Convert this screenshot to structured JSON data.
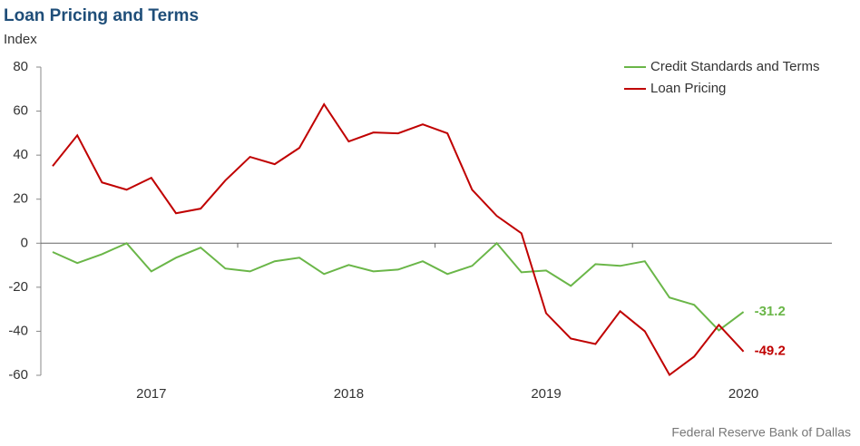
{
  "chart_data": {
    "type": "line",
    "title": "Loan Pricing and Terms",
    "y_label": "Index",
    "source": "Federal Reserve Bank of Dallas",
    "categories": [
      null,
      null,
      null,
      null,
      "2017",
      null,
      null,
      null,
      null,
      null,
      null,
      null,
      "2018",
      null,
      null,
      null,
      null,
      null,
      null,
      null,
      "2019",
      null,
      null,
      null,
      null,
      null,
      null,
      null,
      "2020"
    ],
    "series": [
      {
        "name": "Credit Standards and Terms",
        "color": "#6ab648",
        "values": [
          -4,
          -9,
          -5,
          0,
          -12.8,
          -6.6,
          -2,
          -11.5,
          -12.8,
          -8.2,
          -6.6,
          -14,
          -9.9,
          -12.8,
          -12,
          -8.2,
          -14,
          -10.3,
          0,
          -13.2,
          -12.4,
          -19.4,
          -9.5,
          -10.3,
          -8.2,
          -24.7,
          -28,
          -39.6,
          -31.2
        ]
      },
      {
        "name": "Loan Pricing",
        "color": "#c00000",
        "values": [
          35,
          49,
          27.6,
          24.3,
          29.7,
          13.6,
          15.7,
          28.5,
          39.2,
          35.9,
          43.3,
          63.1,
          46.2,
          50.3,
          49.9,
          54,
          49.9,
          24.3,
          12.4,
          4.5,
          -31.8,
          -43.3,
          -45.8,
          -30.9,
          -40,
          -59.8,
          -51.5,
          -37.1,
          -49.2
        ]
      }
    ],
    "ylim": [
      -60,
      80
    ],
    "yticks": [
      -60,
      -40,
      -20,
      0,
      20,
      40,
      60,
      80
    ],
    "legend": "upper right",
    "grid": false
  }
}
